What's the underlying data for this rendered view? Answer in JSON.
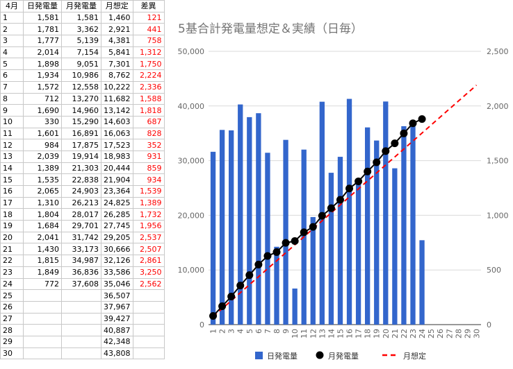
{
  "table": {
    "headers": [
      "4月",
      "日発電量",
      "月発電量",
      "月想定",
      "差異"
    ],
    "rows": [
      [
        "1",
        "1,581",
        "1,581",
        "1,460",
        "121"
      ],
      [
        "2",
        "1,781",
        "3,362",
        "2,921",
        "441"
      ],
      [
        "3",
        "1,777",
        "5,139",
        "4,381",
        "758"
      ],
      [
        "4",
        "2,014",
        "7,154",
        "5,841",
        "1,312"
      ],
      [
        "5",
        "1,898",
        "9,051",
        "7,301",
        "1,750"
      ],
      [
        "6",
        "1,934",
        "10,986",
        "8,762",
        "2,224"
      ],
      [
        "7",
        "1,572",
        "12,558",
        "10,222",
        "2,336"
      ],
      [
        "8",
        "712",
        "13,270",
        "11,682",
        "1,588"
      ],
      [
        "9",
        "1,690",
        "14,960",
        "13,142",
        "1,818"
      ],
      [
        "10",
        "330",
        "15,290",
        "14,603",
        "687"
      ],
      [
        "11",
        "1,601",
        "16,891",
        "16,063",
        "828"
      ],
      [
        "12",
        "984",
        "17,875",
        "17,523",
        "352"
      ],
      [
        "13",
        "2,039",
        "19,914",
        "18,983",
        "931"
      ],
      [
        "14",
        "1,389",
        "21,303",
        "20,444",
        "859"
      ],
      [
        "15",
        "1,535",
        "22,838",
        "21,904",
        "934"
      ],
      [
        "16",
        "2,065",
        "24,903",
        "23,364",
        "1,539"
      ],
      [
        "17",
        "1,310",
        "26,213",
        "24,825",
        "1,389"
      ],
      [
        "18",
        "1,804",
        "28,017",
        "26,285",
        "1,732"
      ],
      [
        "19",
        "1,684",
        "29,701",
        "27,745",
        "1,956"
      ],
      [
        "20",
        "2,041",
        "31,742",
        "29,205",
        "2,537"
      ],
      [
        "21",
        "1,430",
        "33,173",
        "30,666",
        "2,507"
      ],
      [
        "22",
        "1,815",
        "34,987",
        "32,126",
        "2,861"
      ],
      [
        "23",
        "1,849",
        "36,836",
        "33,586",
        "3,250"
      ],
      [
        "24",
        "772",
        "37,608",
        "35,046",
        "2,562"
      ],
      [
        "25",
        "",
        "",
        "36,507",
        ""
      ],
      [
        "26",
        "",
        "",
        "37,967",
        ""
      ],
      [
        "27",
        "",
        "",
        "39,427",
        ""
      ],
      [
        "28",
        "",
        "",
        "40,887",
        ""
      ],
      [
        "29",
        "",
        "",
        "42,348",
        ""
      ],
      [
        "30",
        "",
        "",
        "43,808",
        ""
      ]
    ]
  },
  "chart_data": {
    "type": "bar",
    "title": "5基合計発電量想定＆実績（日毎）",
    "categories": [
      "1",
      "2",
      "3",
      "4",
      "5",
      "6",
      "7",
      "8",
      "9",
      "10",
      "11",
      "12",
      "13",
      "14",
      "15",
      "16",
      "17",
      "18",
      "19",
      "20",
      "21",
      "22",
      "23",
      "24",
      "25",
      "26",
      "27",
      "28",
      "29",
      "30"
    ],
    "series": [
      {
        "name": "日発電量",
        "kind": "bar",
        "axis": "right",
        "color": "#3366cc",
        "values": [
          1581,
          1781,
          1777,
          2014,
          1898,
          1934,
          1572,
          712,
          1690,
          330,
          1601,
          984,
          2039,
          1389,
          1535,
          2065,
          1310,
          1804,
          1684,
          2041,
          1430,
          1815,
          1849,
          772,
          null,
          null,
          null,
          null,
          null,
          null
        ]
      },
      {
        "name": "月発電量",
        "kind": "line-marker",
        "axis": "left",
        "color": "#000000",
        "values": [
          1581,
          3362,
          5139,
          7154,
          9051,
          10986,
          12558,
          13270,
          14960,
          15290,
          16891,
          17875,
          19914,
          21303,
          22838,
          24903,
          26213,
          28017,
          29701,
          31742,
          33173,
          34987,
          36836,
          37608,
          null,
          null,
          null,
          null,
          null,
          null
        ]
      },
      {
        "name": "月想定",
        "kind": "dashed-line",
        "axis": "left",
        "color": "#ff0000",
        "values": [
          1460,
          2921,
          4381,
          5841,
          7301,
          8762,
          10222,
          11682,
          13142,
          14603,
          16063,
          17523,
          18983,
          20444,
          21904,
          23364,
          24825,
          26285,
          27745,
          29205,
          30666,
          32126,
          33586,
          35046,
          36507,
          37967,
          39427,
          40887,
          42348,
          43808
        ]
      }
    ],
    "y_left": {
      "min": 0,
      "max": 50000,
      "ticks": [
        "0",
        "10,000",
        "20,000",
        "30,000",
        "40,000",
        "50,000"
      ]
    },
    "y_right": {
      "min": 0,
      "max": 2500,
      "ticks": [
        "0",
        "500",
        "1,000",
        "1,500",
        "2,000",
        "2,500"
      ]
    },
    "grid": true,
    "legend_position": "bottom"
  }
}
